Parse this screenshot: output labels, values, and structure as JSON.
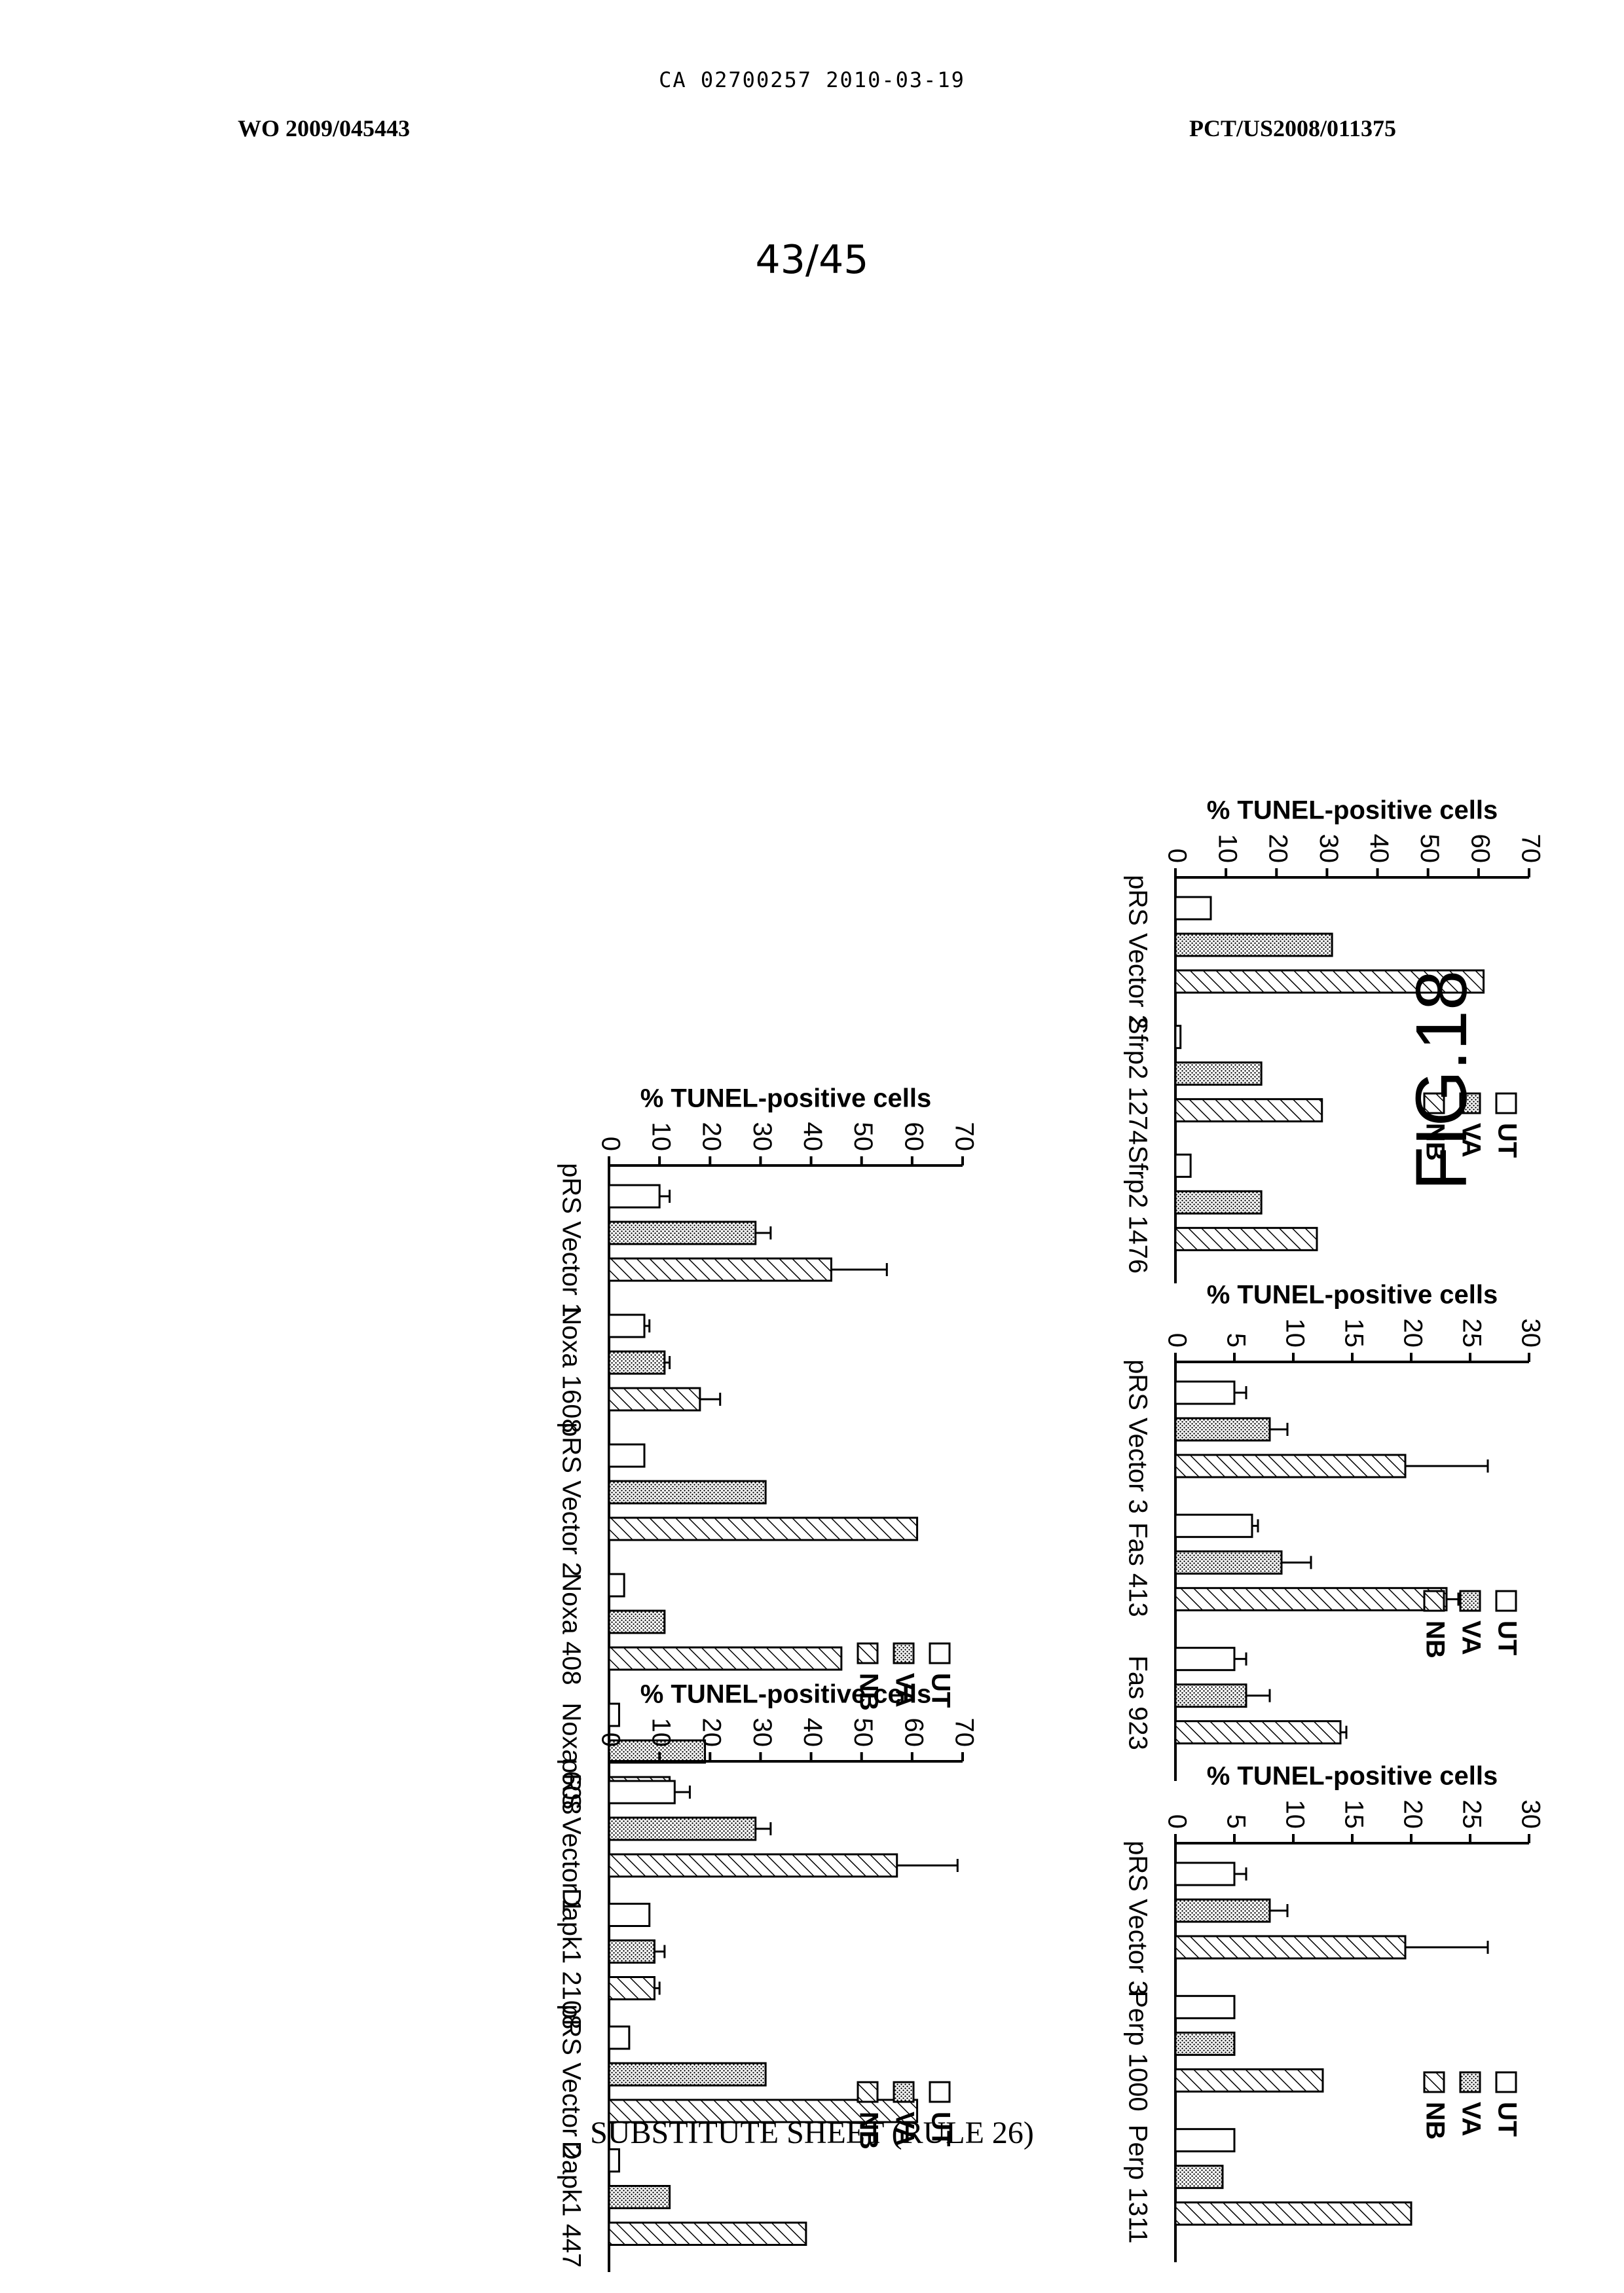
{
  "header": {
    "ca_line": "CA 02700257 2010-03-19",
    "wo_number": "WO 2009/045443",
    "pct_number": "PCT/US2008/011375",
    "page_number": "43/45"
  },
  "figure_label": "FIG.18",
  "footer": "SUBSTITUTE SHEET (RULE 26)",
  "colors": {
    "bar_stroke": "#000000",
    "UT": "#ffffff",
    "VA": "#bdbdbd",
    "NB": "#ffffff"
  },
  "chart_data": [
    {
      "id": "noxa",
      "type": "bar",
      "orientation": "rotated-90",
      "ylabel": "% TUNEL-positive cells",
      "ylim": [
        0,
        70
      ],
      "yticks": [
        0,
        10,
        20,
        30,
        40,
        50,
        60,
        70
      ],
      "categories": [
        "pRS Vector 1",
        "Noxa 1608",
        "pRS Vector 2",
        "Noxa 408",
        "Noxa 608"
      ],
      "legend": [
        "UT",
        "VA",
        "NB"
      ],
      "series": [
        {
          "name": "UT",
          "values": [
            10,
            7,
            7,
            3,
            2
          ],
          "errors": [
            2,
            1,
            0,
            0,
            0
          ]
        },
        {
          "name": "VA",
          "values": [
            29,
            11,
            31,
            11,
            19
          ],
          "errors": [
            3,
            1,
            0,
            0,
            0
          ]
        },
        {
          "name": "NB",
          "values": [
            44,
            18,
            61,
            46,
            12
          ],
          "errors": [
            11,
            4,
            0,
            0,
            0
          ]
        }
      ]
    },
    {
      "id": "sfrp2",
      "type": "bar",
      "orientation": "rotated-90",
      "ylabel": "% TUNEL-positive cells",
      "ylim": [
        0,
        70
      ],
      "yticks": [
        0,
        10,
        20,
        30,
        40,
        50,
        60,
        70
      ],
      "categories": [
        "pRS Vector 2",
        "Sfrp2 1274",
        "Sfrp2 1476"
      ],
      "legend": [
        "UT",
        "VA",
        "NB"
      ],
      "series": [
        {
          "name": "UT",
          "values": [
            7,
            1,
            3
          ],
          "errors": [
            0,
            0,
            0
          ]
        },
        {
          "name": "VA",
          "values": [
            31,
            17,
            17
          ],
          "errors": [
            0,
            0,
            0
          ]
        },
        {
          "name": "NB",
          "values": [
            61,
            29,
            28
          ],
          "errors": [
            0,
            0,
            0
          ]
        }
      ]
    },
    {
      "id": "dapk1",
      "type": "bar",
      "orientation": "rotated-90",
      "ylabel": "% TUNEL-positive cells",
      "ylim": [
        0,
        70
      ],
      "yticks": [
        0,
        10,
        20,
        30,
        40,
        50,
        60,
        70
      ],
      "categories": [
        "pRS Vector 1",
        "Dapk1 2108",
        "pRS Vector 2",
        "Dapk1 447"
      ],
      "legend": [
        "UT",
        "VA",
        "NB"
      ],
      "series": [
        {
          "name": "UT",
          "values": [
            13,
            8,
            4,
            2
          ],
          "errors": [
            3,
            0,
            0,
            0
          ]
        },
        {
          "name": "VA",
          "values": [
            29,
            9,
            31,
            12
          ],
          "errors": [
            3,
            2,
            0,
            0
          ]
        },
        {
          "name": "NB",
          "values": [
            57,
            9,
            61,
            39
          ],
          "errors": [
            12,
            1,
            0,
            0
          ]
        }
      ]
    },
    {
      "id": "fas",
      "type": "bar",
      "orientation": "rotated-90",
      "ylabel": "% TUNEL-positive cells",
      "ylim": [
        0,
        30
      ],
      "yticks": [
        0,
        5,
        10,
        15,
        20,
        25,
        30
      ],
      "categories": [
        "pRS Vector 3",
        "Fas 413",
        "Fas 923"
      ],
      "legend": [
        "UT",
        "VA",
        "NB"
      ],
      "series": [
        {
          "name": "UT",
          "values": [
            5,
            6.5,
            5
          ],
          "errors": [
            1,
            0.5,
            1
          ]
        },
        {
          "name": "VA",
          "values": [
            8,
            9,
            6
          ],
          "errors": [
            1.5,
            2.5,
            2
          ]
        },
        {
          "name": "NB",
          "values": [
            19.5,
            23,
            14
          ],
          "errors": [
            7,
            1,
            0.5
          ]
        }
      ]
    },
    {
      "id": "perp",
      "type": "bar",
      "orientation": "rotated-90",
      "ylabel": "% TUNEL-positive cells",
      "ylim": [
        0,
        30
      ],
      "yticks": [
        0,
        5,
        10,
        15,
        20,
        25,
        30
      ],
      "categories": [
        "pRS Vector 3",
        "Perp 1000",
        "Perp 1311"
      ],
      "legend": [
        "UT",
        "VA",
        "NB"
      ],
      "series": [
        {
          "name": "UT",
          "values": [
            5,
            5,
            5
          ],
          "errors": [
            1,
            0,
            0
          ]
        },
        {
          "name": "VA",
          "values": [
            8,
            5,
            4
          ],
          "errors": [
            1.5,
            0,
            0
          ]
        },
        {
          "name": "NB",
          "values": [
            19.5,
            12.5,
            20
          ],
          "errors": [
            7,
            0,
            0
          ]
        }
      ]
    }
  ]
}
